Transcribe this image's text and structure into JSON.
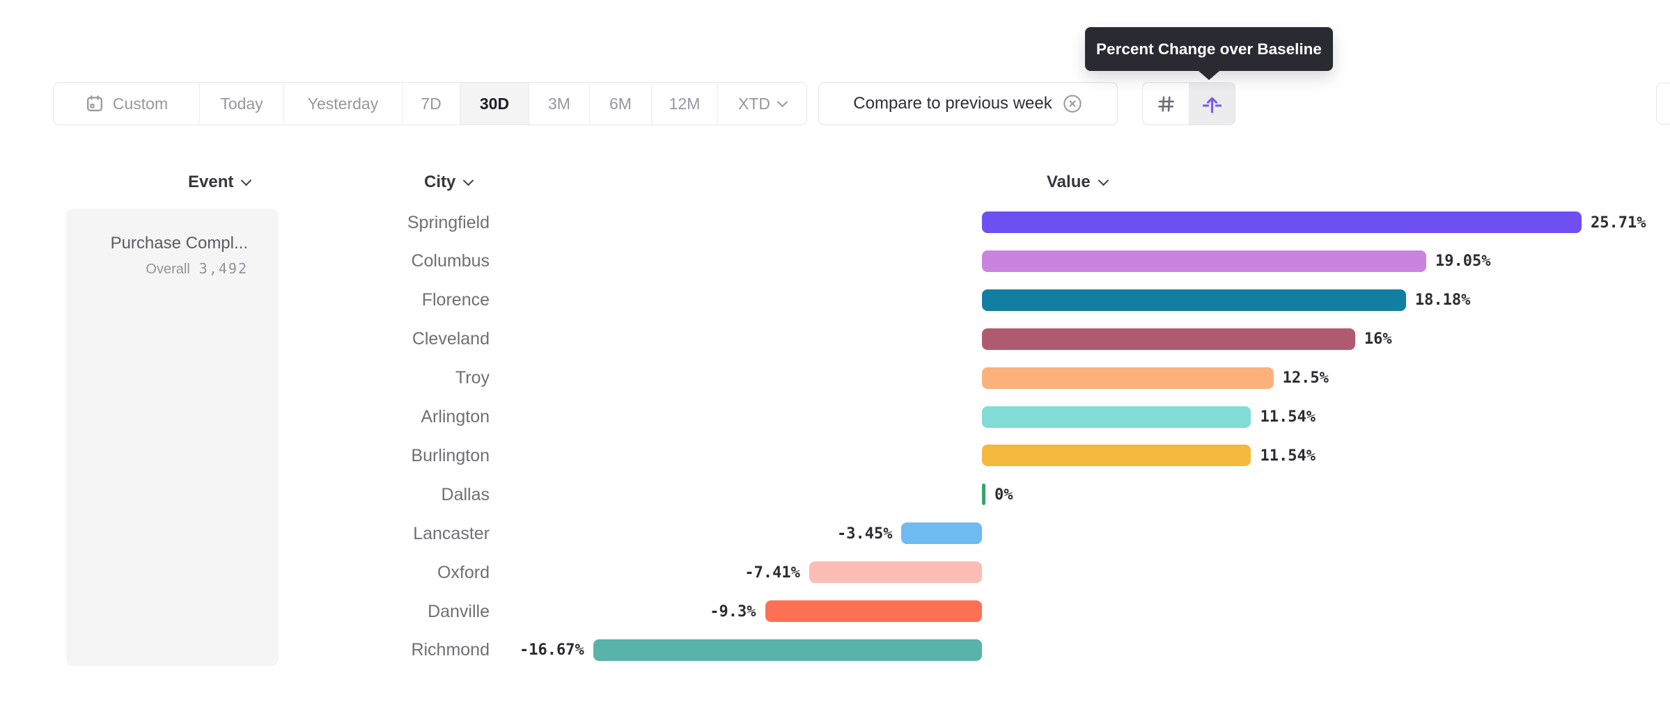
{
  "toolbar": {
    "date_ranges": {
      "buttons": [
        {
          "label": "Custom",
          "icon": "calendar",
          "selected": false
        },
        {
          "label": "Today",
          "selected": false
        },
        {
          "label": "Yesterday",
          "selected": false
        },
        {
          "label": "7D",
          "selected": false
        },
        {
          "label": "30D",
          "selected": true
        },
        {
          "label": "3M",
          "selected": false
        },
        {
          "label": "6M",
          "selected": false
        },
        {
          "label": "12M",
          "selected": false
        },
        {
          "label": "XTD",
          "chevron": true,
          "selected": false
        }
      ]
    },
    "compare": {
      "label": "Compare to previous week",
      "icon": "close-circle"
    },
    "view_toggle": {
      "options": [
        {
          "icon": "number-sign",
          "active": false
        },
        {
          "icon": "percent-change-baseline",
          "active": true
        }
      ],
      "accent_color": "#7A5BF7"
    }
  },
  "tooltip": {
    "text": "Percent Change over Baseline",
    "background": "#2A2A32"
  },
  "columns": {
    "event": {
      "label": "Event"
    },
    "city": {
      "label": "City"
    },
    "value": {
      "label": "Value"
    }
  },
  "event_panel": {
    "title": "Purchase Compl...",
    "metric_label": "Overall",
    "metric_value": "3,492"
  },
  "chart_data": {
    "type": "bar",
    "orientation": "horizontal",
    "value_unit": "percent",
    "xlim": [
      -16.67,
      25.71
    ],
    "grid": false,
    "rows": [
      {
        "city": "Springfield",
        "value": 25.71,
        "label": "25.71%",
        "color": "#6E4FF1"
      },
      {
        "city": "Columbus",
        "value": 19.05,
        "label": "19.05%",
        "color": "#C884DE"
      },
      {
        "city": "Florence",
        "value": 18.18,
        "label": "18.18%",
        "color": "#107FA2"
      },
      {
        "city": "Cleveland",
        "value": 16,
        "label": "16%",
        "color": "#B05A70"
      },
      {
        "city": "Troy",
        "value": 12.5,
        "label": "12.5%",
        "color": "#FCB17D"
      },
      {
        "city": "Arlington",
        "value": 11.54,
        "label": "11.54%",
        "color": "#80DCD4"
      },
      {
        "city": "Burlington",
        "value": 11.54,
        "label": "11.54%",
        "color": "#F4B83E"
      },
      {
        "city": "Dallas",
        "value": 0,
        "label": "0%",
        "color": "#36A46A"
      },
      {
        "city": "Lancaster",
        "value": -3.45,
        "label": "-3.45%",
        "color": "#6FBAF0"
      },
      {
        "city": "Oxford",
        "value": -7.41,
        "label": "-7.41%",
        "color": "#FBBDB5"
      },
      {
        "city": "Danville",
        "value": -9.3,
        "label": "-9.3%",
        "color": "#FC7154"
      },
      {
        "city": "Richmond",
        "value": -16.67,
        "label": "-16.67%",
        "color": "#58B3A9"
      }
    ]
  }
}
